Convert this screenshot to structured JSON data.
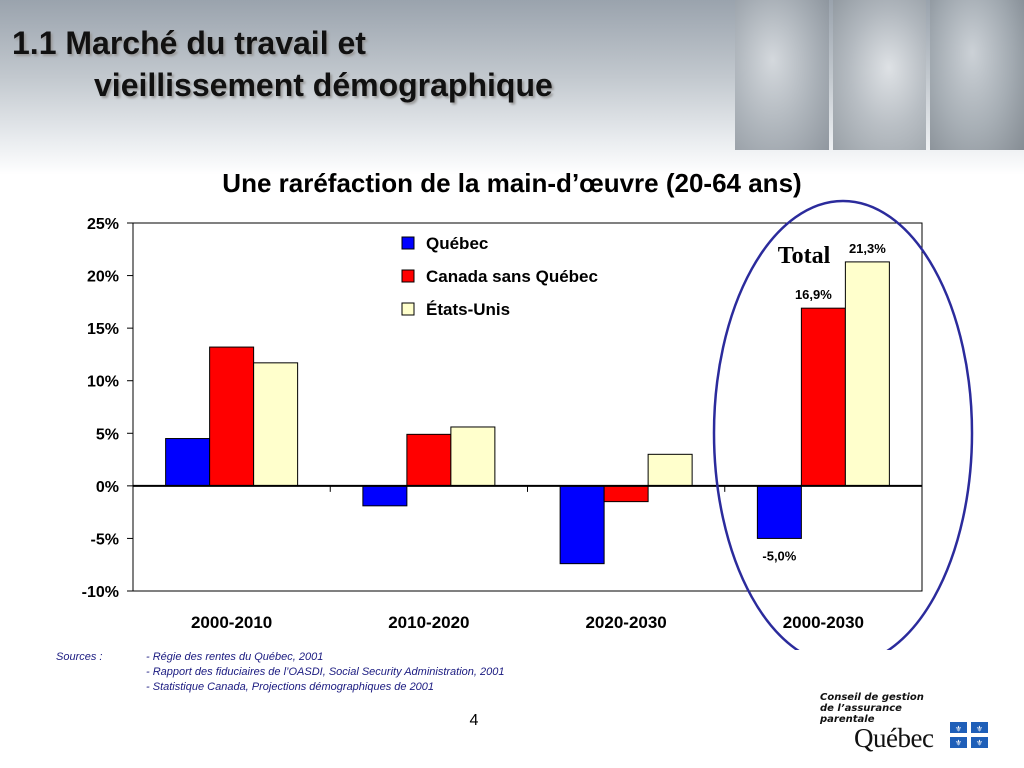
{
  "slide": {
    "title_line1": "1.1 Marché du travail et",
    "title_line2": "vieillissement démographique",
    "page_number": "4"
  },
  "chart_data": {
    "type": "bar",
    "title": "Une raréfaction de la main-d’œuvre (20-64 ans)",
    "categories": [
      "2000-2010",
      "2010-2020",
      "2020-2030",
      "2000-2030"
    ],
    "series": [
      {
        "name": "Québec",
        "color": "#0000ff",
        "values": [
          4.5,
          -1.9,
          -7.4,
          -5.0
        ]
      },
      {
        "name": "Canada sans Québec",
        "color": "#ff0000",
        "values": [
          13.2,
          4.9,
          -1.5,
          16.9
        ]
      },
      {
        "name": "États-Unis",
        "color": "#ffffcc",
        "values": [
          11.7,
          5.6,
          3.0,
          21.3
        ]
      }
    ],
    "ylim": [
      -10,
      25
    ],
    "ytick_labels": [
      "25%",
      "20%",
      "15%",
      "10%",
      "5%",
      "0%",
      "-5%",
      "-10%"
    ],
    "yticks": [
      25,
      20,
      15,
      10,
      5,
      0,
      -5,
      -10
    ],
    "legend_position": "top-center",
    "grid": false,
    "annotations": {
      "total_label": "Total",
      "data_labels": [
        {
          "series": 0,
          "category": 3,
          "text": "-5,0%"
        },
        {
          "series": 1,
          "category": 3,
          "text": "16,9%"
        },
        {
          "series": 2,
          "category": 3,
          "text": "21,3%"
        }
      ],
      "highlight_color": "#2b2b9c"
    }
  },
  "sources": {
    "label": "Sources :",
    "items": [
      "Régie des rentes du Québec, 2001",
      "Rapport des fiduciaires de l’OASDI, Social Security Administration, 2001",
      "Statistique Canada, Projections démographiques de 2001"
    ]
  },
  "branding": {
    "org_line1": "Conseil de gestion",
    "org_line2": "de l’assurance",
    "org_line3": "parentale",
    "govt": "Québec",
    "flag_color": "#1f5fb8"
  }
}
